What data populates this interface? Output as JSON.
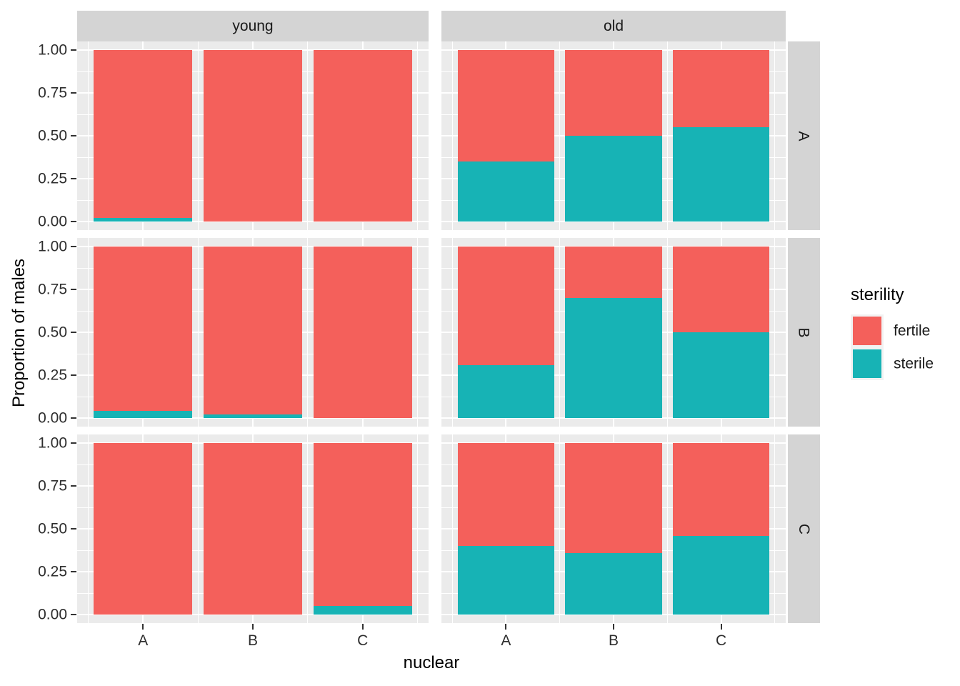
{
  "chart_data": {
    "type": "bar",
    "stacked": true,
    "orientation": "vertical",
    "xlabel": "nuclear",
    "ylabel": "Proportion of males",
    "ylim": [
      0,
      1
    ],
    "yticks": [
      0,
      0.25,
      0.5,
      0.75,
      1
    ],
    "ytick_labels": [
      "0.00",
      "0.25",
      "0.50",
      "0.75",
      "1.00"
    ],
    "categories": [
      "A",
      "B",
      "C"
    ],
    "facet_cols": [
      "young",
      "old"
    ],
    "facet_rows": [
      "A",
      "B",
      "C"
    ],
    "grid": "major-and-minor-white-on-gray",
    "legend": {
      "title": "sterility",
      "position": "right",
      "entries": [
        {
          "label": "fertile",
          "color": "#F4605B"
        },
        {
          "label": "sterile",
          "color": "#17B3B5"
        }
      ]
    },
    "series_order_bottom_to_top": [
      "sterile",
      "fertile"
    ],
    "panels": [
      {
        "row": "A",
        "col": "young",
        "sterile": [
          0.02,
          0.0,
          0.0
        ],
        "fertile": [
          0.98,
          1.0,
          1.0
        ]
      },
      {
        "row": "A",
        "col": "old",
        "sterile": [
          0.35,
          0.5,
          0.55
        ],
        "fertile": [
          0.65,
          0.5,
          0.45
        ]
      },
      {
        "row": "B",
        "col": "young",
        "sterile": [
          0.04,
          0.02,
          0.0
        ],
        "fertile": [
          0.96,
          0.98,
          1.0
        ]
      },
      {
        "row": "B",
        "col": "old",
        "sterile": [
          0.31,
          0.7,
          0.5
        ],
        "fertile": [
          0.69,
          0.3,
          0.5
        ]
      },
      {
        "row": "C",
        "col": "young",
        "sterile": [
          0.0,
          0.0,
          0.05
        ],
        "fertile": [
          1.0,
          1.0,
          0.95
        ]
      },
      {
        "row": "C",
        "col": "old",
        "sterile": [
          0.4,
          0.36,
          0.46
        ],
        "fertile": [
          0.6,
          0.64,
          0.54
        ]
      }
    ],
    "colors": {
      "panel_background": "#EBEBEB",
      "strip_background": "#D4D4D4",
      "gridline": "#FFFFFF",
      "tick_mark": "#333333",
      "tick_text": "#2D2D2D",
      "title_text": "#000000"
    }
  }
}
